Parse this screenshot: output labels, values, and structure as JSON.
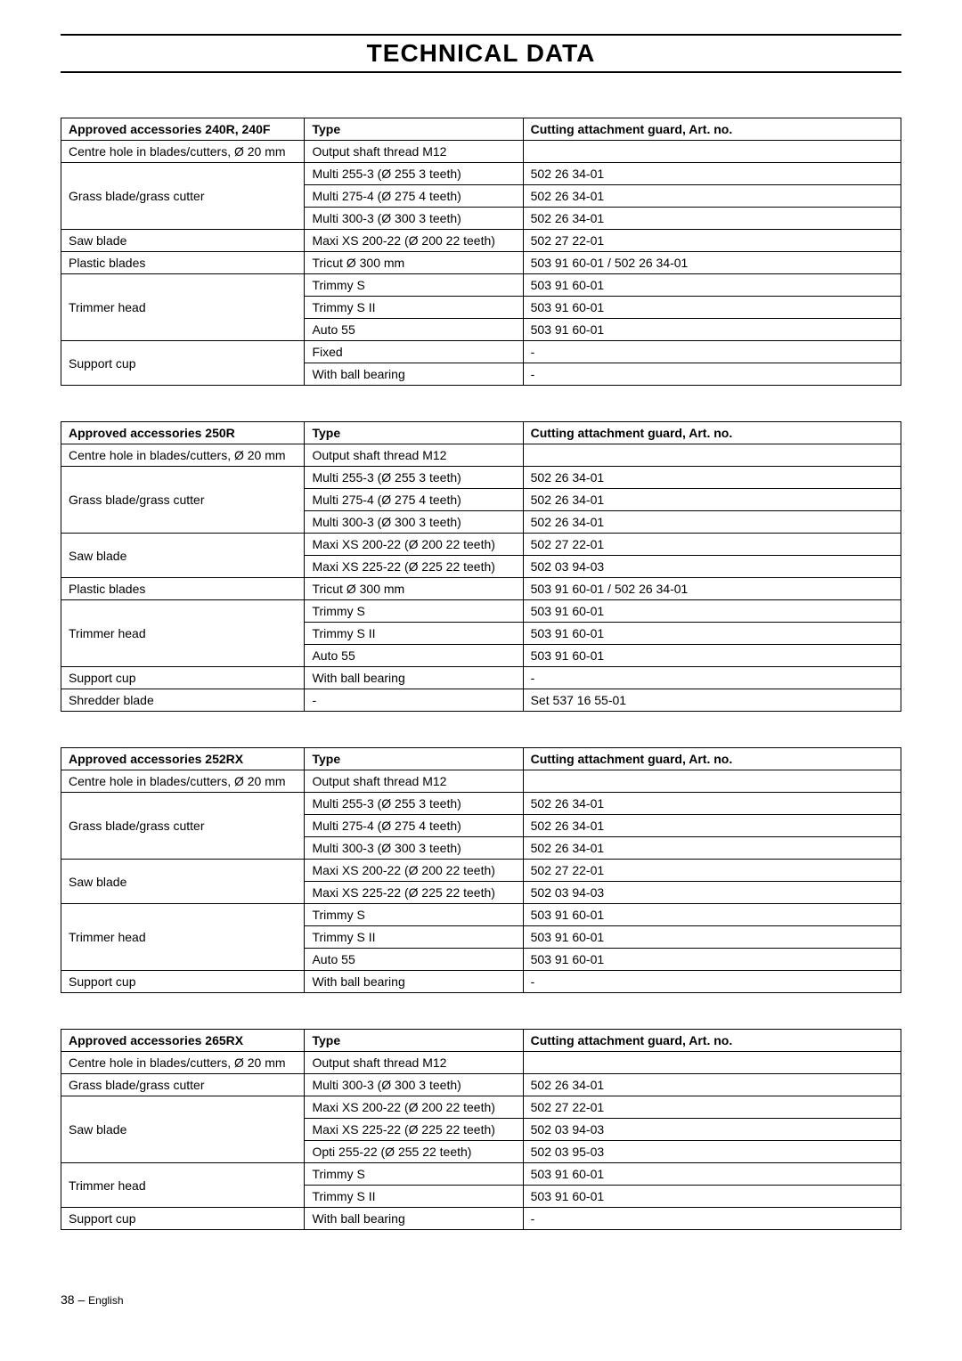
{
  "title": "TECHNICAL DATA",
  "h_type": "Type",
  "h_guard": "Cutting attachment guard, Art. no.",
  "dash": "-",
  "t1": {
    "header": "Approved accessories 240R, 240F",
    "r0c0": "Centre hole in blades/cutters, Ø 20 mm",
    "r0c1": "Output shaft thread M12",
    "r1c0": "Grass blade/grass cutter",
    "r1c1": "Multi 255-3 (Ø 255 3 teeth)",
    "r1c2": "502 26 34-01",
    "r2c1": "Multi 275-4 (Ø 275 4 teeth)",
    "r2c2": "502 26 34-01",
    "r3c1": "Multi 300-3 (Ø 300 3 teeth)",
    "r3c2": "502 26 34-01",
    "r4c0": "Saw blade",
    "r4c1": "Maxi XS 200-22 (Ø 200 22 teeth)",
    "r4c2": "502 27 22-01",
    "r5c0": "Plastic blades",
    "r5c1": "Tricut Ø 300 mm",
    "r5c2": "503 91 60-01 / 502 26 34-01",
    "r6c0": "Trimmer head",
    "r6c1": "Trimmy S",
    "r6c2": "503 91 60-01",
    "r7c1": "Trimmy S II",
    "r7c2": "503 91 60-01",
    "r8c1": "Auto 55",
    "r8c2": "503 91 60-01",
    "r9c0": "Support cup",
    "r9c1": "Fixed",
    "r10c1": "With ball bearing"
  },
  "t2": {
    "header": "Approved accessories 250R",
    "r0c0": "Centre hole in blades/cutters, Ø 20 mm",
    "r0c1": "Output shaft thread M12",
    "r1c0": "Grass blade/grass cutter",
    "r1c1": "Multi 255-3 (Ø 255 3 teeth)",
    "r1c2": "502 26 34-01",
    "r2c1": "Multi 275-4 (Ø 275 4 teeth)",
    "r2c2": "502 26 34-01",
    "r3c1": "Multi 300-3 (Ø 300 3 teeth)",
    "r3c2": "502 26 34-01",
    "r4c0": "Saw blade",
    "r4c1": "Maxi XS 200-22 (Ø 200 22 teeth)",
    "r4c2": "502 27 22-01",
    "r5c1": "Maxi XS 225-22 (Ø 225 22 teeth)",
    "r5c2": "502 03 94-03",
    "r6c0": "Plastic blades",
    "r6c1": "Tricut Ø 300 mm",
    "r6c2": "503 91 60-01 / 502 26 34-01",
    "r7c0": "Trimmer head",
    "r7c1": "Trimmy S",
    "r7c2": "503 91 60-01",
    "r8c1": "Trimmy S II",
    "r8c2": "503 91 60-01",
    "r9c1": "Auto 55",
    "r9c2": "503 91 60-01",
    "r10c0": "Support cup",
    "r10c1": "With ball bearing",
    "r11c0": "Shredder blade",
    "r11c2": "Set 537 16 55-01"
  },
  "t3": {
    "header": "Approved accessories 252RX",
    "r0c0": "Centre hole in blades/cutters, Ø 20 mm",
    "r0c1": "Output shaft thread M12",
    "r1c0": "Grass blade/grass cutter",
    "r1c1": "Multi 255-3 (Ø 255 3 teeth)",
    "r1c2": "502 26 34-01",
    "r2c1": "Multi 275-4 (Ø 275 4 teeth)",
    "r2c2": "502 26 34-01",
    "r3c1": "Multi 300-3 (Ø 300 3 teeth)",
    "r3c2": "502 26 34-01",
    "r4c0": "Saw blade",
    "r4c1": "Maxi XS 200-22 (Ø 200 22 teeth)",
    "r4c2": "502 27 22-01",
    "r5c1": "Maxi XS 225-22 (Ø 225 22 teeth)",
    "r5c2": "502 03 94-03",
    "r6c0": "Trimmer head",
    "r6c1": "Trimmy S",
    "r6c2": "503 91 60-01",
    "r7c1": "Trimmy S II",
    "r7c2": "503 91 60-01",
    "r8c1": "Auto 55",
    "r8c2": "503 91 60-01",
    "r9c0": "Support cup",
    "r9c1": "With ball bearing"
  },
  "t4": {
    "header": "Approved accessories 265RX",
    "r0c0": "Centre hole in blades/cutters, Ø 20 mm",
    "r0c1": "Output shaft thread M12",
    "r1c0": "Grass blade/grass cutter",
    "r1c1": "Multi 300-3 (Ø 300 3 teeth)",
    "r1c2": "502 26 34-01",
    "r2c0": "Saw blade",
    "r2c1": "Maxi XS 200-22 (Ø 200 22 teeth)",
    "r2c2": "502 27 22-01",
    "r3c1": "Maxi XS 225-22 (Ø 225 22 teeth)",
    "r3c2": "502 03 94-03",
    "r4c1": "Opti 255-22 (Ø 255 22 teeth)",
    "r4c2": "502 03 95-03",
    "r5c0": "Trimmer head",
    "r5c1": "Trimmy S",
    "r5c2": "503 91 60-01",
    "r6c1": "Trimmy S II",
    "r6c2": "503 91 60-01",
    "r7c0": "Support cup",
    "r7c1": "With ball bearing"
  },
  "footer": {
    "page": "38",
    "sep": " – ",
    "lang": "English"
  }
}
